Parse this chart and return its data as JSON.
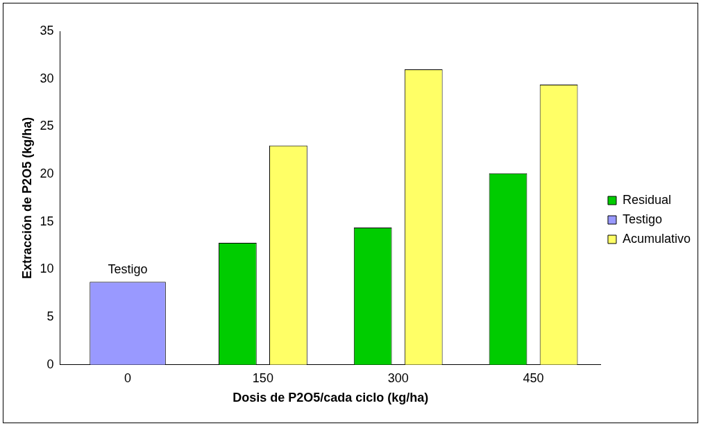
{
  "chart_data": {
    "type": "bar",
    "xlabel": "Dosis de P2O5/cada ciclo (kg/ha)",
    "ylabel": "Extracción de P2O5 (kg/ha)",
    "categories": [
      "0",
      "150",
      "300",
      "450"
    ],
    "series": [
      {
        "name": "Residual",
        "color": "#00cc00",
        "values": [
          null,
          12.8,
          14.4,
          20.1
        ]
      },
      {
        "name": "Testigo",
        "color": "#9999ff",
        "values": [
          8.7,
          null,
          null,
          null
        ]
      },
      {
        "name": "Acumulativo",
        "color": "#ffff66",
        "values": [
          null,
          23,
          31,
          29.4
        ]
      }
    ],
    "ylim": [
      0,
      35
    ],
    "yticks": [
      0,
      5,
      10,
      15,
      20,
      25,
      30,
      35
    ],
    "grid": false,
    "legend": "right",
    "annotations": [
      {
        "text": "Testigo",
        "x": "0",
        "y": 8.7
      }
    ]
  }
}
